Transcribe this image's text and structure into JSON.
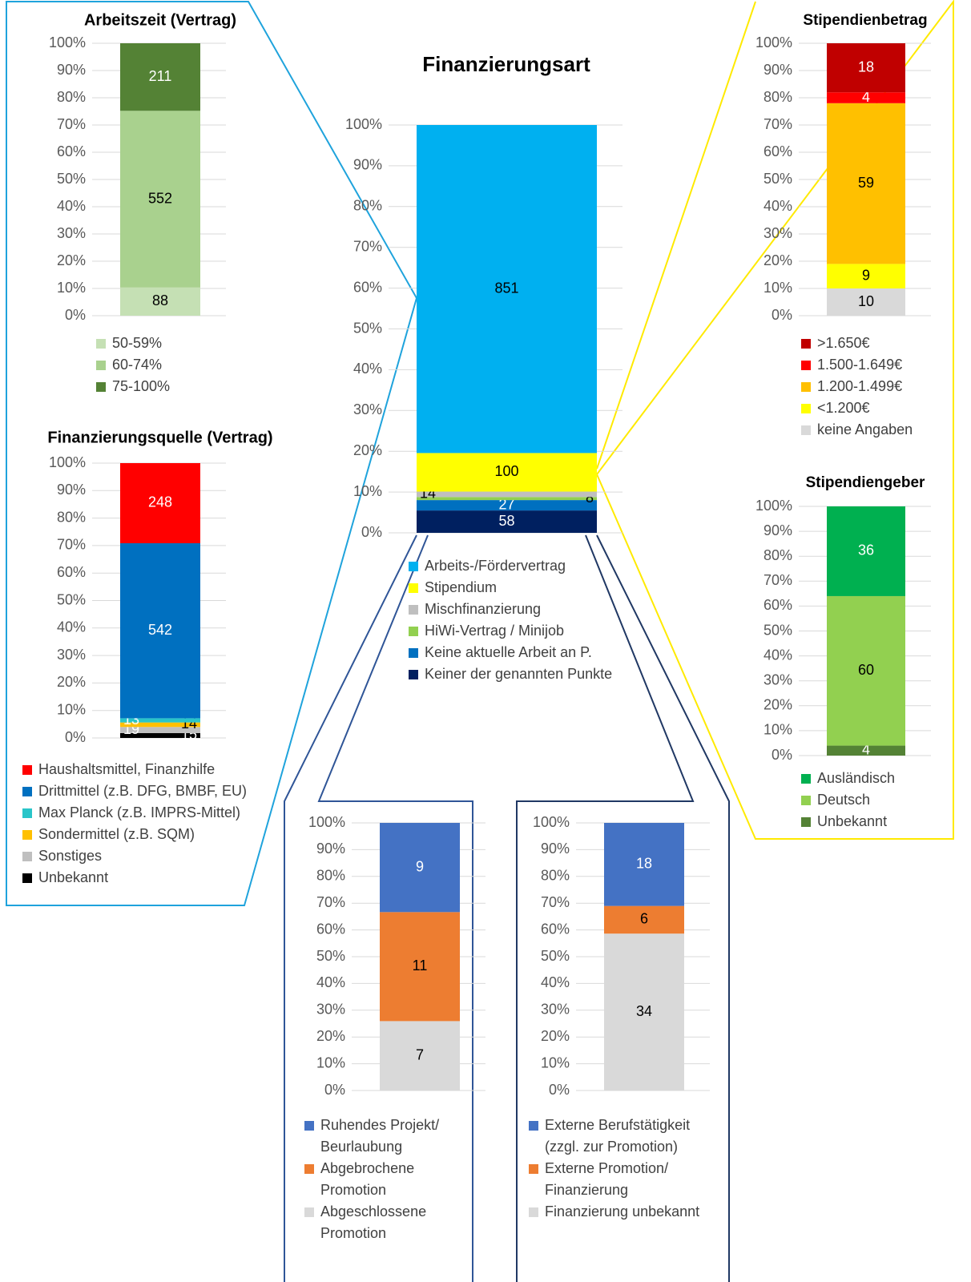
{
  "chart_data": [
    {
      "type": "bar",
      "stacked": "percent",
      "title": "Arbeitszeit (Vertrag)",
      "ylim": [
        0,
        100
      ],
      "grid": true,
      "legend_reversed": false,
      "yticks": [
        {
          "value": 0,
          "label": "0%"
        },
        {
          "value": 10,
          "label": "10%"
        },
        {
          "value": 20,
          "label": "20%"
        },
        {
          "value": 30,
          "label": "30%"
        },
        {
          "value": 40,
          "label": "40%"
        },
        {
          "value": 50,
          "label": "50%"
        },
        {
          "value": 60,
          "label": "60%"
        },
        {
          "value": 70,
          "label": "70%"
        },
        {
          "value": 80,
          "label": "80%"
        },
        {
          "value": 90,
          "label": "90%"
        },
        {
          "value": 100,
          "label": "100%"
        }
      ],
      "series": [
        {
          "name": "50-59%",
          "color": "#c5e0b4",
          "values": [
            88
          ],
          "label_color": "#000000"
        },
        {
          "name": "60-74%",
          "color": "#a9d18e",
          "values": [
            552
          ],
          "label_color": "#000000"
        },
        {
          "name": "75-100%",
          "color": "#548235",
          "values": [
            211
          ],
          "label_color": "#ffffff"
        }
      ]
    },
    {
      "type": "bar",
      "stacked": "percent",
      "title": "Finanzierungsquelle (Vertrag)",
      "ylim": [
        0,
        100
      ],
      "grid": true,
      "legend_reversed": true,
      "yticks": [
        {
          "value": 0,
          "label": "0%"
        },
        {
          "value": 10,
          "label": "10%"
        },
        {
          "value": 20,
          "label": "20%"
        },
        {
          "value": 30,
          "label": "30%"
        },
        {
          "value": 40,
          "label": "40%"
        },
        {
          "value": 50,
          "label": "50%"
        },
        {
          "value": 60,
          "label": "60%"
        },
        {
          "value": 70,
          "label": "70%"
        },
        {
          "value": 80,
          "label": "80%"
        },
        {
          "value": 90,
          "label": "90%"
        },
        {
          "value": 100,
          "label": "100%"
        }
      ],
      "series": [
        {
          "name": "Unbekannt",
          "color": "#000000",
          "values": [
            15
          ],
          "label_color": "#ffffff",
          "label_align": "right"
        },
        {
          "name": "Sonstiges",
          "color": "#bfbfbf",
          "values": [
            19
          ],
          "label_color": "#ffffff",
          "label_align": "left"
        },
        {
          "name": "Sondermittel (z.B. SQM)",
          "color": "#ffc000",
          "values": [
            14
          ],
          "label_color": "#000000",
          "label_align": "right"
        },
        {
          "name": "Max Planck (z.B. IMPRS-Mittel)",
          "color": "#29c5c9",
          "values": [
            13
          ],
          "label_color": "#ffffff",
          "label_align": "left"
        },
        {
          "name": "Drittmittel (z.B. DFG, BMBF, EU)",
          "color": "#0070c0",
          "values": [
            542
          ],
          "label_color": "#ffffff"
        },
        {
          "name": "Haushaltsmittel, Finanzhilfe",
          "color": "#ff0000",
          "values": [
            248
          ],
          "label_color": "#ffffff"
        }
      ]
    },
    {
      "type": "bar",
      "stacked": "percent",
      "title": "Finanzierungsart",
      "ylim": [
        0,
        100
      ],
      "grid": true,
      "legend_reversed": true,
      "yticks": [
        {
          "value": 0,
          "label": "0%"
        },
        {
          "value": 10,
          "label": "10%"
        },
        {
          "value": 20,
          "label": "20%"
        },
        {
          "value": 30,
          "label": "30%"
        },
        {
          "value": 40,
          "label": "40%"
        },
        {
          "value": 50,
          "label": "50%"
        },
        {
          "value": 60,
          "label": "60%"
        },
        {
          "value": 70,
          "label": "70%"
        },
        {
          "value": 80,
          "label": "80%"
        },
        {
          "value": 90,
          "label": "90%"
        },
        {
          "value": 100,
          "label": "100%"
        }
      ],
      "series": [
        {
          "name": "Keiner der genannten Punkte",
          "color": "#002060",
          "values": [
            58
          ],
          "label_color": "#ffffff"
        },
        {
          "name": "Keine aktuelle Arbeit an P.",
          "color": "#0070c0",
          "values": [
            27
          ],
          "label_color": "#ffffff"
        },
        {
          "name": "HiWi-Vertrag / Minijob",
          "color": "#92d050",
          "values": [
            8
          ],
          "label_color": "#000000",
          "label_align": "right"
        },
        {
          "name": "Mischfinanzierung",
          "color": "#bfbfbf",
          "values": [
            14
          ],
          "label_color": "#000000",
          "label_align": "left"
        },
        {
          "name": "Stipendium",
          "color": "#ffff00",
          "values": [
            100
          ],
          "label_color": "#000000"
        },
        {
          "name": "Arbeits-/Fördervertrag",
          "color": "#00b0f0",
          "values": [
            851
          ],
          "label_color": "#000000"
        }
      ]
    },
    {
      "type": "bar",
      "stacked": "percent",
      "title": "Stipendienbetrag",
      "ylim": [
        0,
        100
      ],
      "grid": true,
      "legend_reversed": true,
      "yticks": [
        {
          "value": 0,
          "label": "0%"
        },
        {
          "value": 10,
          "label": "10%"
        },
        {
          "value": 20,
          "label": "20%"
        },
        {
          "value": 30,
          "label": "30%"
        },
        {
          "value": 40,
          "label": "40%"
        },
        {
          "value": 50,
          "label": "50%"
        },
        {
          "value": 60,
          "label": "60%"
        },
        {
          "value": 70,
          "label": "70%"
        },
        {
          "value": 80,
          "label": "80%"
        },
        {
          "value": 90,
          "label": "90%"
        },
        {
          "value": 100,
          "label": "100%"
        }
      ],
      "series": [
        {
          "name": "keine Angaben",
          "color": "#d9d9d9",
          "values": [
            10
          ],
          "label_color": "#000000"
        },
        {
          "name": "<1.200€",
          "color": "#ffff00",
          "values": [
            9
          ],
          "label_color": "#000000"
        },
        {
          "name": "1.200-1.499€",
          "color": "#ffc000",
          "values": [
            59
          ],
          "label_color": "#000000"
        },
        {
          "name": "1.500-1.649€",
          "color": "#ff0000",
          "values": [
            4
          ],
          "label_color": "#ffffff"
        },
        {
          "name": ">1.650€",
          "color": "#c00000",
          "values": [
            18
          ],
          "label_color": "#ffffff"
        }
      ]
    },
    {
      "type": "bar",
      "stacked": "percent",
      "title": "Stipendiengeber",
      "ylim": [
        0,
        100
      ],
      "grid": true,
      "legend_reversed": true,
      "yticks": [
        {
          "value": 0,
          "label": "0%"
        },
        {
          "value": 10,
          "label": "10%"
        },
        {
          "value": 20,
          "label": "20%"
        },
        {
          "value": 30,
          "label": "30%"
        },
        {
          "value": 40,
          "label": "40%"
        },
        {
          "value": 50,
          "label": "50%"
        },
        {
          "value": 60,
          "label": "60%"
        },
        {
          "value": 70,
          "label": "70%"
        },
        {
          "value": 80,
          "label": "80%"
        },
        {
          "value": 90,
          "label": "90%"
        },
        {
          "value": 100,
          "label": "100%"
        }
      ],
      "series": [
        {
          "name": "Unbekannt",
          "color": "#548235",
          "values": [
            4
          ],
          "label_color": "#ffffff"
        },
        {
          "name": "Deutsch",
          "color": "#92d050",
          "values": [
            60
          ],
          "label_color": "#000000"
        },
        {
          "name": "Ausländisch",
          "color": "#00b050",
          "values": [
            36
          ],
          "label_color": "#ffffff"
        }
      ]
    },
    {
      "type": "bar",
      "stacked": "percent",
      "ylim": [
        0,
        100
      ],
      "grid": true,
      "legend_reversed": true,
      "yticks": [
        {
          "value": 0,
          "label": "0%"
        },
        {
          "value": 10,
          "label": "10%"
        },
        {
          "value": 20,
          "label": "20%"
        },
        {
          "value": 30,
          "label": "30%"
        },
        {
          "value": 40,
          "label": "40%"
        },
        {
          "value": 50,
          "label": "50%"
        },
        {
          "value": 60,
          "label": "60%"
        },
        {
          "value": 70,
          "label": "70%"
        },
        {
          "value": 80,
          "label": "80%"
        },
        {
          "value": 90,
          "label": "90%"
        },
        {
          "value": 100,
          "label": "100%"
        }
      ],
      "series": [
        {
          "name": "Abgeschlossene\nPromotion",
          "color": "#d9d9d9",
          "values": [
            7
          ],
          "label_color": "#000000"
        },
        {
          "name": "Abgebrochene\nPromotion",
          "color": "#ed7d31",
          "values": [
            11
          ],
          "label_color": "#000000"
        },
        {
          "name": "Ruhendes Projekt/\nBeurlaubung",
          "color": "#4472c4",
          "values": [
            9
          ],
          "label_color": "#ffffff"
        }
      ]
    },
    {
      "type": "bar",
      "stacked": "percent",
      "ylim": [
        0,
        100
      ],
      "grid": true,
      "legend_reversed": true,
      "yticks": [
        {
          "value": 0,
          "label": "0%"
        },
        {
          "value": 10,
          "label": "10%"
        },
        {
          "value": 20,
          "label": "20%"
        },
        {
          "value": 30,
          "label": "30%"
        },
        {
          "value": 40,
          "label": "40%"
        },
        {
          "value": 50,
          "label": "50%"
        },
        {
          "value": 60,
          "label": "60%"
        },
        {
          "value": 70,
          "label": "70%"
        },
        {
          "value": 80,
          "label": "80%"
        },
        {
          "value": 90,
          "label": "90%"
        },
        {
          "value": 100,
          "label": "100%"
        }
      ],
      "series": [
        {
          "name": "Finanzierung unbekannt",
          "color": "#d9d9d9",
          "values": [
            34
          ],
          "label_color": "#000000"
        },
        {
          "name": "Externe Promotion/\nFinanzierung",
          "color": "#ed7d31",
          "values": [
            6
          ],
          "label_color": "#000000"
        },
        {
          "name": "Externe Berufstätigkeit\n(zzgl. zur Promotion)",
          "color": "#4472c4",
          "values": [
            18
          ],
          "label_color": "#ffffff"
        }
      ]
    }
  ]
}
